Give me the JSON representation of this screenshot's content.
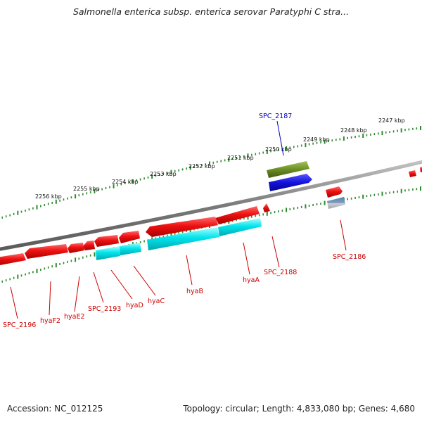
{
  "title": "Salmonella enterica subsp. enterica serovar Paratyphi C stra...",
  "footer": {
    "accession": "Accession: NC_012125",
    "summary": "Topology: circular; Length: 4,833,080 bp; Genes: 4,680"
  },
  "colors": {
    "backbone": "#8a8a8a",
    "tick": "#2e8b2e",
    "gene_red": "#ee1111",
    "gene_cyan": "#00e0e8",
    "gene_blue": "#1212dd",
    "gene_olive": "#6b8e23",
    "gene_steel": "#5a7fa8",
    "label_red": "#cc0000",
    "label_blue": "#0000bb"
  },
  "scale_labels": [
    "2256 kbp",
    "2255 kbp",
    "2254 kbp",
    "2253 kbp",
    "2252 kbp",
    "2251 kbp",
    "2250 kbp",
    "2249 kbp",
    "2248 kbp",
    "2247 kbp"
  ],
  "gene_labels": [
    "SPC_2187",
    "SPC_2186",
    "SPC_2188",
    "hyaA",
    "hyaB",
    "hyaC",
    "hyaD",
    "SPC_2193",
    "hyaE2",
    "hyaF2",
    "SPC_2196"
  ]
}
